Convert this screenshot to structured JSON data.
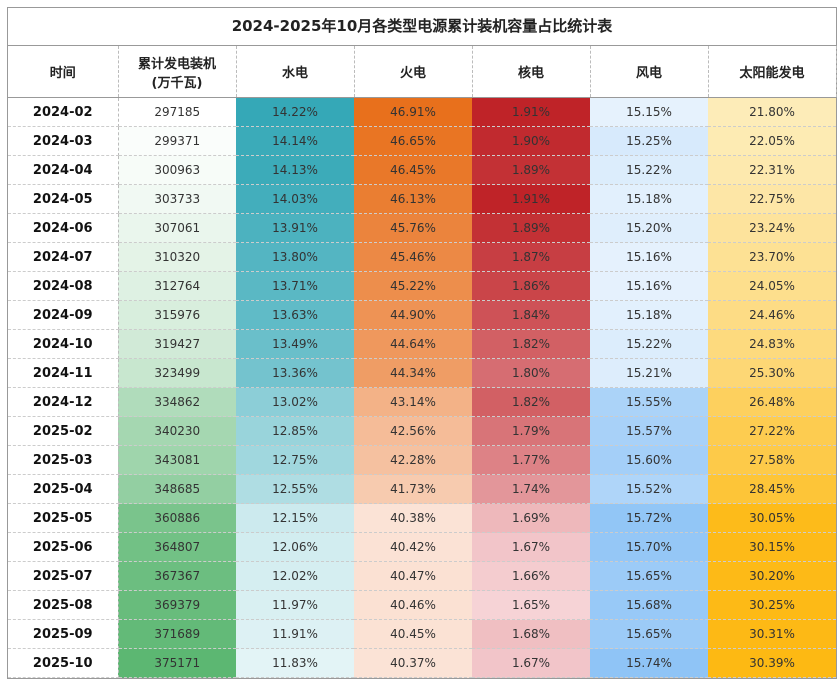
{
  "chart_data": {
    "type": "table",
    "title": "2024-2025年10月各类型电源累计装机容量占比统计表",
    "columns": [
      "时间",
      "累计发电装机\n(万千瓦)",
      "水电",
      "火电",
      "核电",
      "风电",
      "太阳能发电"
    ],
    "rows": [
      [
        "2024-02",
        "297185",
        "14.22%",
        "46.91%",
        "1.91%",
        "15.15%",
        "21.80%"
      ],
      [
        "2024-03",
        "299371",
        "14.14%",
        "46.65%",
        "1.90%",
        "15.25%",
        "22.05%"
      ],
      [
        "2024-04",
        "300963",
        "14.13%",
        "46.45%",
        "1.89%",
        "15.22%",
        "22.31%"
      ],
      [
        "2024-05",
        "303733",
        "14.03%",
        "46.13%",
        "1.91%",
        "15.18%",
        "22.75%"
      ],
      [
        "2024-06",
        "307061",
        "13.91%",
        "45.76%",
        "1.89%",
        "15.20%",
        "23.24%"
      ],
      [
        "2024-07",
        "310320",
        "13.80%",
        "45.46%",
        "1.87%",
        "15.16%",
        "23.70%"
      ],
      [
        "2024-08",
        "312764",
        "13.71%",
        "45.22%",
        "1.86%",
        "15.16%",
        "24.05%"
      ],
      [
        "2024-09",
        "315976",
        "13.63%",
        "44.90%",
        "1.84%",
        "15.18%",
        "24.46%"
      ],
      [
        "2024-10",
        "319427",
        "13.49%",
        "44.64%",
        "1.82%",
        "15.22%",
        "24.83%"
      ],
      [
        "2024-11",
        "323499",
        "13.36%",
        "44.34%",
        "1.80%",
        "15.21%",
        "25.30%"
      ],
      [
        "2024-12",
        "334862",
        "13.02%",
        "43.14%",
        "1.82%",
        "15.55%",
        "26.48%"
      ],
      [
        "2025-02",
        "340230",
        "12.85%",
        "42.56%",
        "1.79%",
        "15.57%",
        "27.22%"
      ],
      [
        "2025-03",
        "343081",
        "12.75%",
        "42.28%",
        "1.77%",
        "15.60%",
        "27.58%"
      ],
      [
        "2025-04",
        "348685",
        "12.55%",
        "41.73%",
        "1.74%",
        "15.52%",
        "28.45%"
      ],
      [
        "2025-05",
        "360886",
        "12.15%",
        "40.38%",
        "1.69%",
        "15.72%",
        "30.05%"
      ],
      [
        "2025-06",
        "364807",
        "12.06%",
        "40.42%",
        "1.67%",
        "15.70%",
        "30.15%"
      ],
      [
        "2025-07",
        "367367",
        "12.02%",
        "40.47%",
        "1.66%",
        "15.65%",
        "30.20%"
      ],
      [
        "2025-08",
        "369379",
        "11.97%",
        "40.46%",
        "1.65%",
        "15.68%",
        "30.25%"
      ],
      [
        "2025-09",
        "371689",
        "11.91%",
        "40.45%",
        "1.68%",
        "15.65%",
        "30.31%"
      ],
      [
        "2025-10",
        "375171",
        "11.83%",
        "40.37%",
        "1.67%",
        "15.74%",
        "30.39%"
      ]
    ],
    "color_scales": [
      null,
      {
        "low": "#ffffff",
        "high": "#5cb772"
      },
      {
        "low": "#e3f4f6",
        "high": "#35a8b7"
      },
      {
        "low": "#fbe3d6",
        "high": "#e8701c"
      },
      {
        "low": "#f6d3d6",
        "high": "#bf2328"
      },
      {
        "low": "#e6f2fd",
        "high": "#8fc4f6"
      },
      {
        "low": "#fdecb8",
        "high": "#fdb913"
      }
    ]
  }
}
